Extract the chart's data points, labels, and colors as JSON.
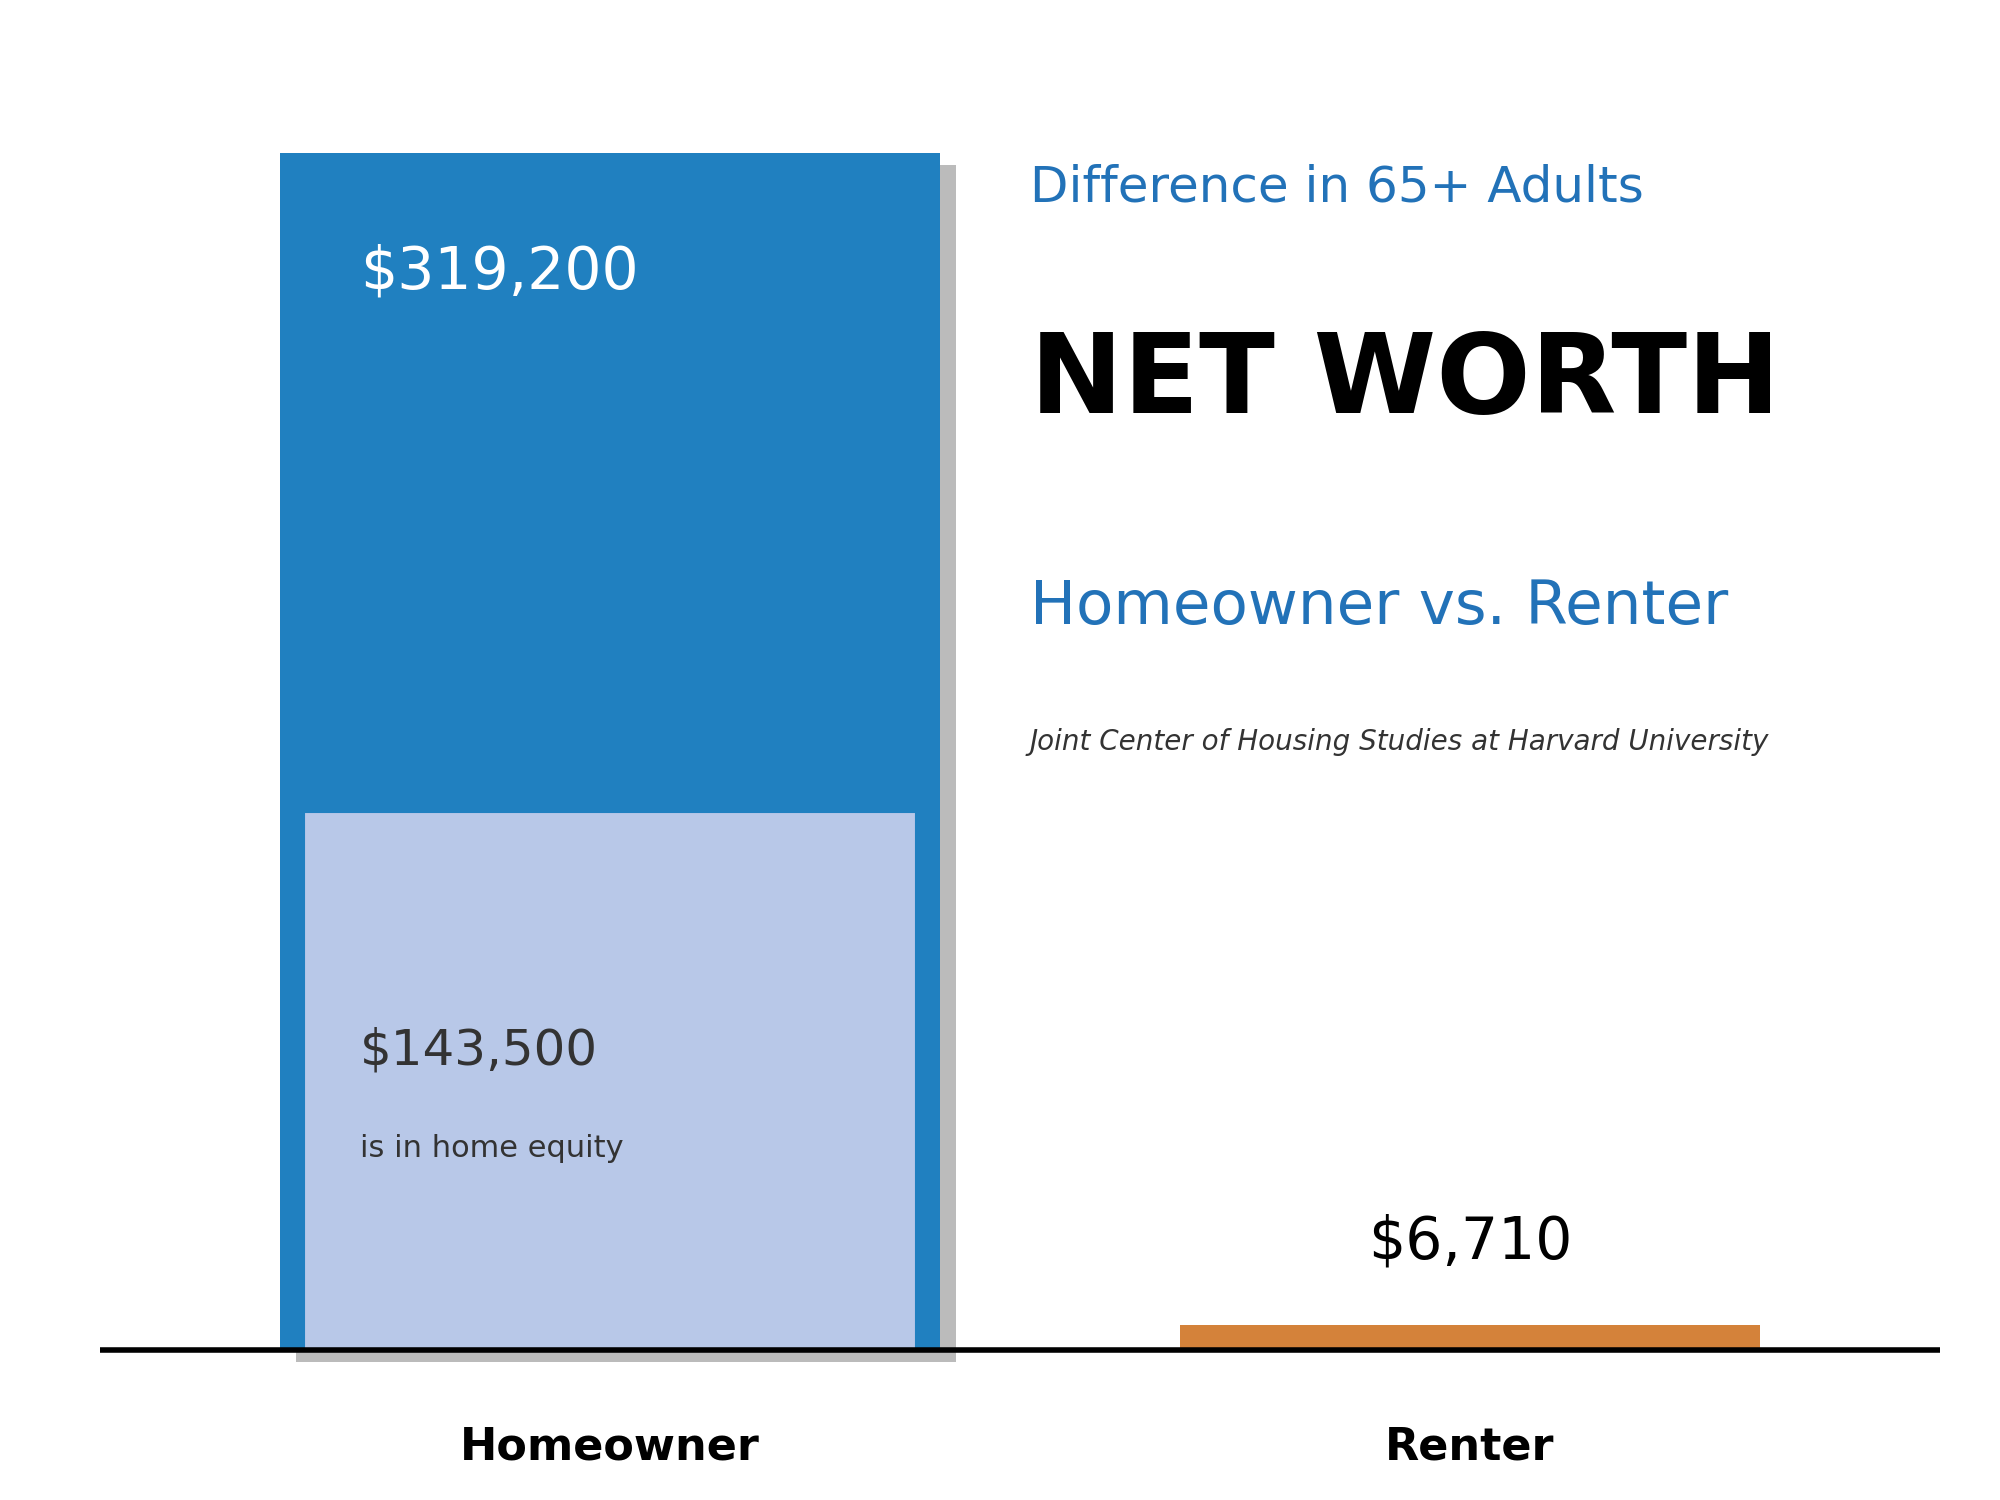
{
  "homeowner_total": 319200,
  "homeowner_equity": 143500,
  "renter_total": 6710,
  "max_value": 340000,
  "homeowner_blue": "#2080C0",
  "homeowner_light_blue": "#B8C8E8",
  "renter_orange": "#D4823A",
  "background_color": "#FFFFFF",
  "text_color_white": "#FFFFFF",
  "text_color_blue": "#2272B8",
  "text_color_black": "#000000",
  "text_color_dark": "#333333",
  "label_homeowner": "Homeowner",
  "label_renter": "Renter",
  "value_homeowner": "$319,200",
  "value_equity": "$143,500",
  "equity_label": "is in home equity",
  "value_renter": "$6,710",
  "title_line1": "Difference in 65+ Adults",
  "title_line2": "NET WORTH",
  "title_line3": "Homeowner vs. Renter",
  "citation": "Joint Center of Housing Studies at Harvard University",
  "shadow_color": "#BBBBBB"
}
